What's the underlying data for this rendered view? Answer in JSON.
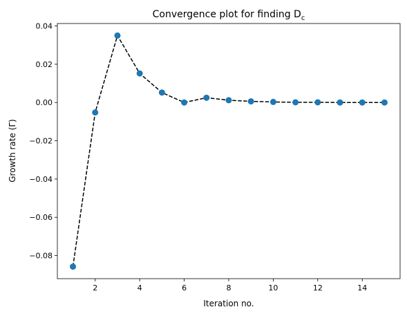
{
  "chart_data": {
    "type": "line",
    "title": "Convergence plot for finding D",
    "title_subscript": "c",
    "xlabel": "Iteration no.",
    "ylabel": "Growth rate (Γ)",
    "xlim": [
      0.3,
      15.7
    ],
    "ylim": [
      -0.0921,
      0.0413
    ],
    "xticks": [
      2,
      4,
      6,
      8,
      10,
      12,
      14
    ],
    "xtick_labels": [
      "2",
      "4",
      "6",
      "8",
      "10",
      "12",
      "14"
    ],
    "yticks": [
      -0.08,
      -0.06,
      -0.04,
      -0.02,
      0.0,
      0.02,
      0.04
    ],
    "ytick_labels": [
      "−0.08",
      "−0.06",
      "−0.04",
      "−0.02",
      "0.00",
      "0.02",
      "0.04"
    ],
    "grid": false,
    "legend": false,
    "series": [
      {
        "x": [
          1,
          2,
          3,
          4,
          5,
          6,
          7,
          8,
          9,
          10,
          11,
          12,
          13,
          14,
          15
        ],
        "y": [
          -0.0858,
          -0.0052,
          0.035,
          0.0152,
          0.0052,
          0.0,
          0.0025,
          0.0012,
          0.0006,
          0.0003,
          0.0001,
          0.0001,
          0.0,
          0.0,
          0.0
        ],
        "line_style": "dashed",
        "line_color": "#000000",
        "marker": "circle",
        "marker_color": "#1f77b4"
      }
    ]
  }
}
